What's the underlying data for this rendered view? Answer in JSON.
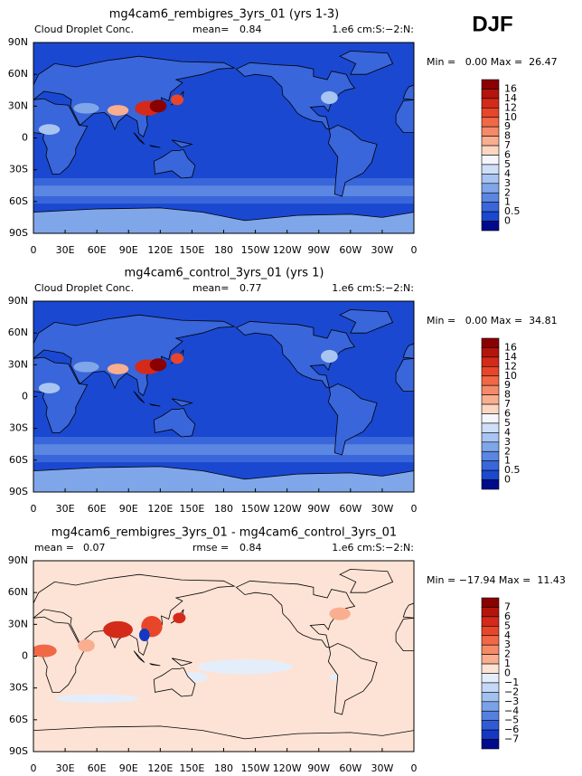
{
  "header": {
    "season": "DJF"
  },
  "panels": [
    {
      "title": "mg4cam6_rembigres_3yrs_01 (yrs 1-3)",
      "left_label": "Cloud Droplet Conc.",
      "mean_label": "mean=",
      "mean": "0.84",
      "units": "1.e6 cm:S:−2:N:",
      "stats": "Min =   0.00 Max =  26.47",
      "style": "field",
      "colorbar": {
        "labels": [
          "16",
          "14",
          "12",
          "10",
          "9",
          "8",
          "7",
          "6",
          "5",
          "4",
          "3",
          "2",
          "1",
          "0.5",
          "0"
        ],
        "colors": [
          "#8b0000",
          "#b3150c",
          "#d42a1a",
          "#e8462a",
          "#f06846",
          "#f58a68",
          "#f9ae90",
          "#fdd6c2",
          "#f3f6fc",
          "#cfdff7",
          "#a8c4f1",
          "#80a6ea",
          "#5b86e2",
          "#3966da",
          "#1a48d0",
          "#000a8c"
        ]
      },
      "lat_ticks": [
        "90N",
        "60N",
        "30N",
        "0",
        "30S",
        "60S",
        "90S"
      ],
      "lon_ticks": [
        "0",
        "30E",
        "60E",
        "90E",
        "120E",
        "150E",
        "180",
        "150W",
        "120W",
        "90W",
        "60W",
        "30W",
        "0"
      ]
    },
    {
      "title": "mg4cam6_control_3yrs_01 (yrs 1)",
      "left_label": "Cloud Droplet Conc.",
      "mean_label": "mean=",
      "mean": "0.77",
      "units": "1.e6 cm:S:−2:N:",
      "stats": "Min =   0.00 Max =  34.81",
      "style": "field",
      "colorbar": {
        "labels": [
          "16",
          "14",
          "12",
          "10",
          "9",
          "8",
          "7",
          "6",
          "5",
          "4",
          "3",
          "2",
          "1",
          "0.5",
          "0"
        ],
        "colors": [
          "#8b0000",
          "#b3150c",
          "#d42a1a",
          "#e8462a",
          "#f06846",
          "#f58a68",
          "#f9ae90",
          "#fdd6c2",
          "#f3f6fc",
          "#cfdff7",
          "#a8c4f1",
          "#80a6ea",
          "#5b86e2",
          "#3966da",
          "#1a48d0",
          "#000a8c"
        ]
      },
      "lat_ticks": [
        "90N",
        "60N",
        "30N",
        "0",
        "30S",
        "60S",
        "90S"
      ],
      "lon_ticks": [
        "0",
        "30E",
        "60E",
        "90E",
        "120E",
        "150E",
        "180",
        "150W",
        "120W",
        "90W",
        "60W",
        "30W",
        "0"
      ]
    },
    {
      "title": "mg4cam6_rembigres_3yrs_01 - mg4cam6_control_3yrs_01",
      "left_label": "mean =",
      "mean": "0.07",
      "rmse_label": "rmse =",
      "rmse": "0.84",
      "units": "1.e6 cm:S:−2:N:",
      "stats": "Min = −17.94 Max =  11.43",
      "style": "diff",
      "colorbar": {
        "labels": [
          "7",
          "6",
          "5",
          "4",
          "3",
          "2",
          "1",
          "0",
          "−1",
          "−2",
          "−3",
          "−4",
          "−5",
          "−6",
          "−7"
        ],
        "colors": [
          "#8b0000",
          "#b3150c",
          "#d42a1a",
          "#e8462a",
          "#f06846",
          "#f58a68",
          "#f9ae90",
          "#fde3d5",
          "#e4eefb",
          "#c5d8f6",
          "#a2c0f0",
          "#7ba2e9",
          "#5580e0",
          "#2f5cd6",
          "#1438c4",
          "#000a8c"
        ]
      },
      "lat_ticks": [
        "90N",
        "60N",
        "30N",
        "0",
        "30S",
        "60S",
        "90S"
      ],
      "lon_ticks": [
        "0",
        "30E",
        "60E",
        "90E",
        "120E",
        "150E",
        "180",
        "150W",
        "120W",
        "90W",
        "60W",
        "30W",
        "0"
      ]
    }
  ]
}
